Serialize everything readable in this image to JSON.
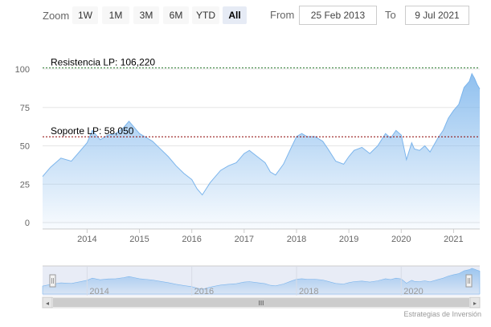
{
  "toolbar": {
    "zoom_label": "Zoom",
    "buttons": [
      "1W",
      "1M",
      "3M",
      "6M",
      "YTD",
      "All"
    ],
    "active_button": "All",
    "from_label": "From",
    "from_value": "25 Feb 2013",
    "to_label": "To",
    "to_value": "9 Jul 2021"
  },
  "credits": "Estrategias de Inversión",
  "navigator": {
    "scroll_grip": "III",
    "left_arrow": "◂",
    "right_arrow": "▸"
  },
  "colors": {
    "series_line": "#7cb5ec",
    "area_top": "#7cb5ec",
    "resistance_line": "#2e7d32",
    "support_line": "#8b0000",
    "grid": "#e6e6e6"
  },
  "chart_data": {
    "type": "area",
    "title": "",
    "xlabel": "",
    "ylabel": "",
    "ylim": [
      0,
      100
    ],
    "yticks": [
      0,
      25,
      50,
      75,
      100
    ],
    "xticks": [
      "2014",
      "2015",
      "2016",
      "2017",
      "2018",
      "2019",
      "2020",
      "2021"
    ],
    "series": [
      {
        "x": [
          2013.15,
          2013.3,
          2013.5,
          2013.7,
          2013.9,
          2014.0,
          2014.1,
          2014.25,
          2014.4,
          2014.55,
          2014.7,
          2014.8,
          2014.9,
          2015.0,
          2015.1,
          2015.25,
          2015.4,
          2015.55,
          2015.7,
          2015.85,
          2016.0,
          2016.1,
          2016.2,
          2016.35,
          2016.45,
          2016.55,
          2016.7,
          2016.85,
          2017.0,
          2017.1,
          2017.25,
          2017.4,
          2017.5,
          2017.6,
          2017.75,
          2017.9,
          2018.0,
          2018.1,
          2018.2,
          2018.35,
          2018.5,
          2018.6,
          2018.75,
          2018.9,
          2019.0,
          2019.1,
          2019.25,
          2019.4,
          2019.55,
          2019.7,
          2019.8,
          2019.9,
          2020.0,
          2020.1,
          2020.2,
          2020.25,
          2020.35,
          2020.45,
          2020.55,
          2020.7,
          2020.8,
          2020.9,
          2021.0,
          2021.1,
          2021.2,
          2021.3,
          2021.35,
          2021.4,
          2021.45,
          2021.5
        ],
        "values": [
          30,
          36,
          42,
          40,
          48,
          52,
          60,
          54,
          57,
          58,
          62,
          66,
          62,
          58,
          56,
          53,
          48,
          43,
          37,
          32,
          28,
          22,
          18,
          26,
          30,
          34,
          37,
          39,
          45,
          47,
          43,
          39,
          33,
          31,
          38,
          49,
          56,
          58,
          56,
          56,
          53,
          48,
          40,
          38,
          43,
          47,
          49,
          45,
          50,
          58,
          55,
          60,
          57,
          41,
          52,
          48,
          47,
          50,
          46,
          55,
          60,
          68,
          73,
          77,
          88,
          92,
          97,
          94,
          90,
          87
        ]
      }
    ],
    "reference_lines": [
      {
        "label": "Resistencia LP: 106,220",
        "value": 100.8
      },
      {
        "label": "Soporte LP: 58,050",
        "value": 55.9
      }
    ],
    "navigator_labels": [
      "2014",
      "2016",
      "2018",
      "2020"
    ],
    "grid": true,
    "legend": "none"
  }
}
